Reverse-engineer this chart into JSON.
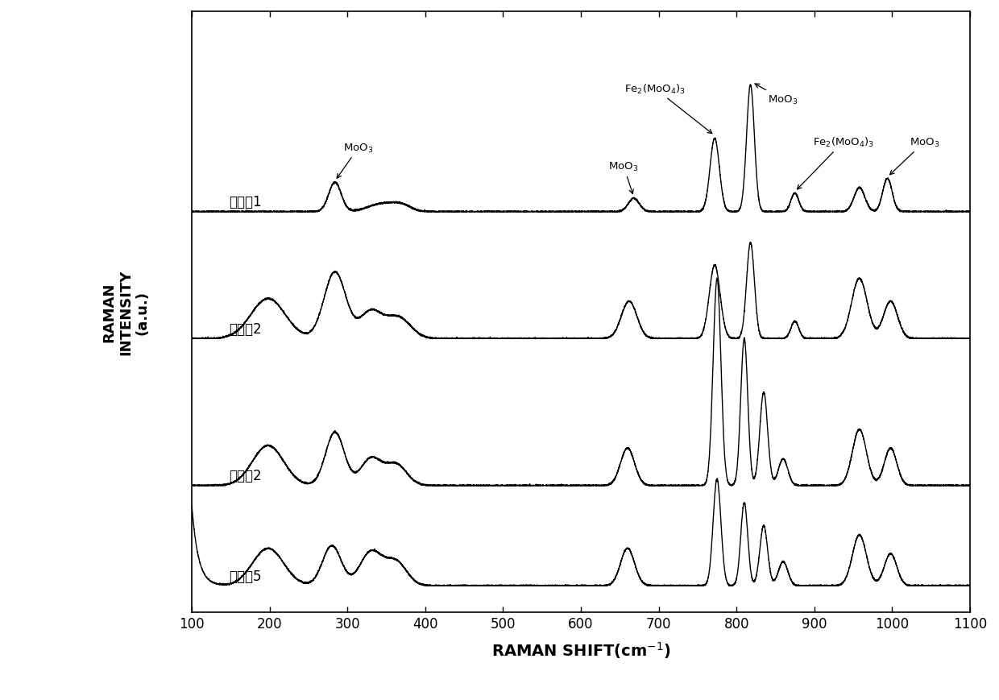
{
  "x_min": 100,
  "x_max": 1100,
  "xticks": [
    100,
    200,
    300,
    400,
    500,
    600,
    700,
    800,
    900,
    1000,
    1100
  ],
  "series_labels": [
    "对比例1",
    "对比例2",
    "实施例2",
    "实施例5"
  ],
  "offsets": [
    2.8,
    1.85,
    0.75,
    0.0
  ],
  "background": "#ffffff",
  "line_color": "#000000",
  "ylabel_line1": "RAMAN",
  "ylabel_line2": "INTENSITY",
  "ylabel_line3": "(a.u.)"
}
